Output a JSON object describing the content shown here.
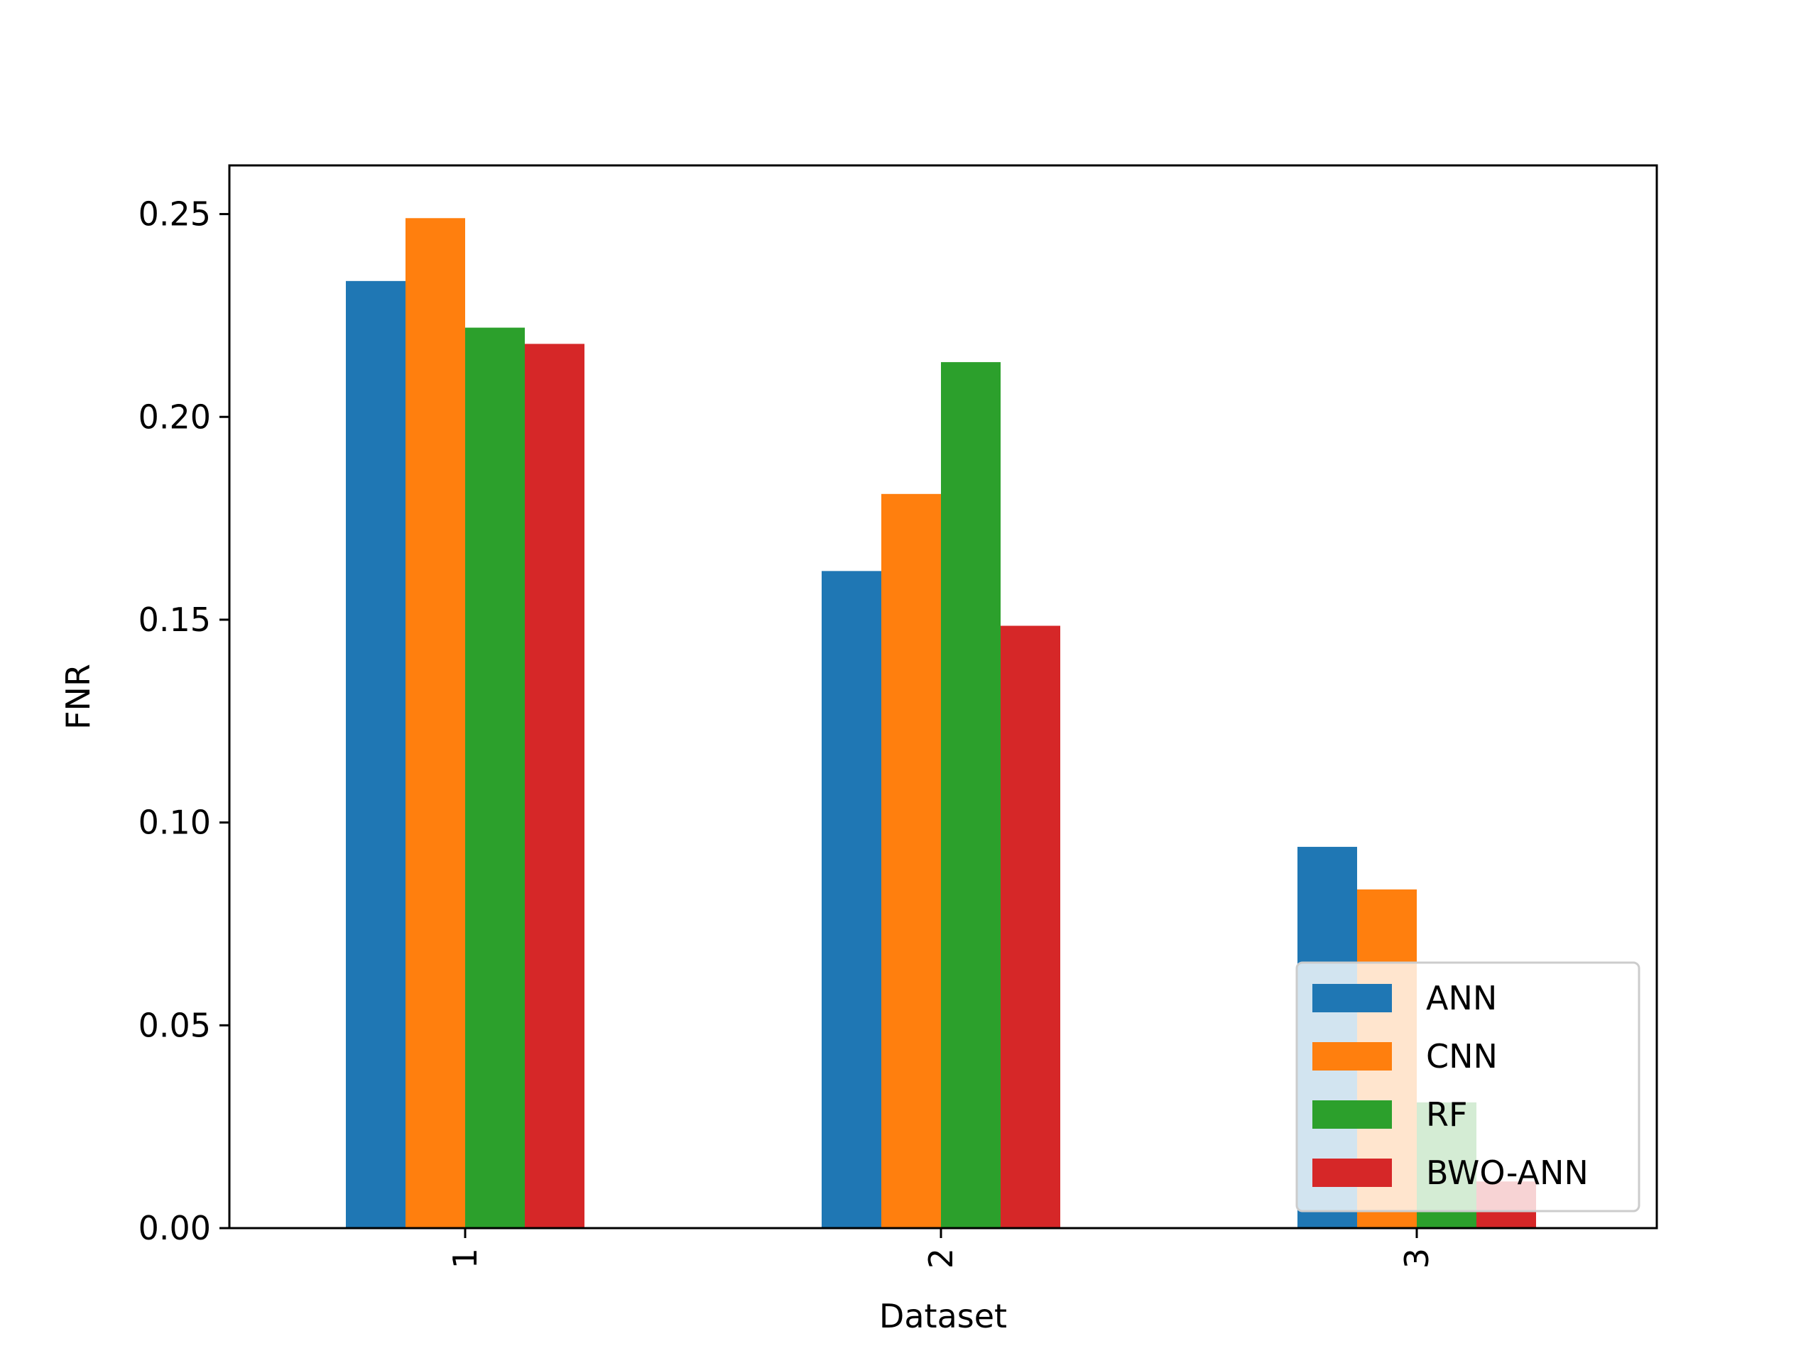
{
  "chart_data": {
    "type": "bar",
    "title": "",
    "xlabel": "Dataset",
    "ylabel": "FNR",
    "categories": [
      "1",
      "2",
      "3"
    ],
    "series": [
      {
        "name": "ANN",
        "color": "#1f77b4",
        "values": [
          0.2335,
          0.162,
          0.094
        ]
      },
      {
        "name": "CNN",
        "color": "#ff7f0e",
        "values": [
          0.249,
          0.181,
          0.0835
        ]
      },
      {
        "name": "RF",
        "color": "#2ca02c",
        "values": [
          0.222,
          0.2135,
          0.031
        ]
      },
      {
        "name": "BWO-ANN",
        "color": "#d62728",
        "values": [
          0.218,
          0.1485,
          0.0115
        ]
      }
    ],
    "ylim": [
      0,
      0.262
    ],
    "yticks": [
      "0.00",
      "0.05",
      "0.10",
      "0.15",
      "0.20",
      "0.25"
    ],
    "xtick_rotation": "vertical",
    "legend_position": "lower-right",
    "grid": false
  }
}
